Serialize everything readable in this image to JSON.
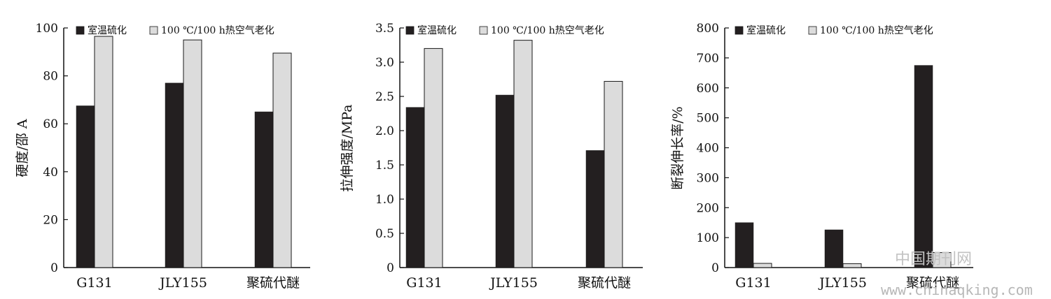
{
  "chart_data": [
    {
      "type": "bar",
      "ylabel": "硬度/邵 A",
      "categories": [
        "G131",
        "JLY155",
        "聚硫代醚"
      ],
      "ylim": [
        0,
        100
      ],
      "yticks": [
        "0",
        "20",
        "40",
        "60",
        "80",
        "100"
      ],
      "series": [
        {
          "name": "室温硫化",
          "values": [
            67.5,
            77,
            65
          ]
        },
        {
          "name": "100 ℃/100 h热空气老化",
          "values": [
            96.5,
            95,
            89.5
          ]
        }
      ],
      "legend": "top-left"
    },
    {
      "type": "bar",
      "ylabel": "拉伸强度/MPa",
      "categories": [
        "G131",
        "JLY155",
        "聚硫代醚"
      ],
      "ylim": [
        0,
        3.5
      ],
      "yticks": [
        "0",
        "0.5",
        "1.0",
        "1.5",
        "2.0",
        "2.5",
        "3.0",
        "3.5"
      ],
      "series": [
        {
          "name": "室温硫化",
          "values": [
            2.34,
            2.52,
            1.71
          ]
        },
        {
          "name": "100 ℃/100 h热空气老化",
          "values": [
            3.2,
            3.32,
            2.72
          ]
        }
      ],
      "legend": "top-left"
    },
    {
      "type": "bar",
      "ylabel": "断裂伸长率/%",
      "categories": [
        "G131",
        "JLY155",
        "聚硫代醚"
      ],
      "ylim": [
        0,
        800
      ],
      "yticks": [
        "0",
        "100",
        "200",
        "300",
        "400",
        "500",
        "600",
        "700",
        "800"
      ],
      "series": [
        {
          "name": "室温硫化",
          "values": [
            150,
            126,
            675
          ]
        },
        {
          "name": "100 ℃/100 h热空气老化",
          "values": [
            14,
            13,
            50
          ]
        }
      ],
      "legend": "top-left"
    }
  ],
  "colors": {
    "series_dark": "#231f20",
    "series_light": "#dcdcdc",
    "axis": "#111111"
  },
  "watermark": {
    "text_cn": "中国期刊网",
    "text_url": "www.chinaqking.com"
  }
}
